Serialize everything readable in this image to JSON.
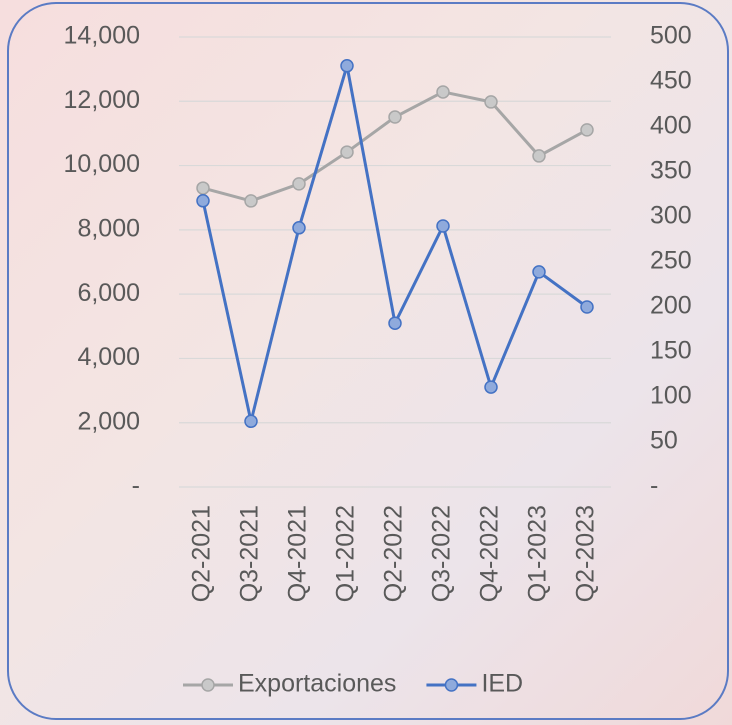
{
  "chart_data": {
    "type": "line",
    "categories": [
      "Q2-2021",
      "Q3-2021",
      "Q4-2021",
      "Q1-2022",
      "Q2-2022",
      "Q3-2022",
      "Q4-2022",
      "Q1-2023",
      "Q2-2023"
    ],
    "series": [
      {
        "name": "Exportaciones",
        "color": "#a6a6a6",
        "values": [
          9300,
          8900,
          9430,
          10420,
          11510,
          12290,
          11980,
          10300,
          11110
        ]
      },
      {
        "name": "IED",
        "color": "#4472c4",
        "axis": "y2",
        "values": [
          318,
          73,
          288,
          468,
          182,
          290,
          111,
          239,
          200
        ]
      }
    ],
    "ylim": [
      0,
      14000
    ],
    "yticks": [
      {
        "value": 0,
        "label": "-"
      },
      {
        "value": 2000,
        "label": "2,000"
      },
      {
        "value": 4000,
        "label": "4,000"
      },
      {
        "value": 6000,
        "label": "6,000"
      },
      {
        "value": 8000,
        "label": "8,000"
      },
      {
        "value": 10000,
        "label": "10,000"
      },
      {
        "value": 12000,
        "label": "12,000"
      },
      {
        "value": 14000,
        "label": "14,000"
      }
    ],
    "y2lim": [
      0,
      500
    ],
    "y2ticks": [
      {
        "value": 0,
        "label": "-"
      },
      50,
      100,
      150,
      200,
      250,
      300,
      350,
      400,
      450,
      500
    ],
    "grid": true,
    "legend": "bottom"
  }
}
